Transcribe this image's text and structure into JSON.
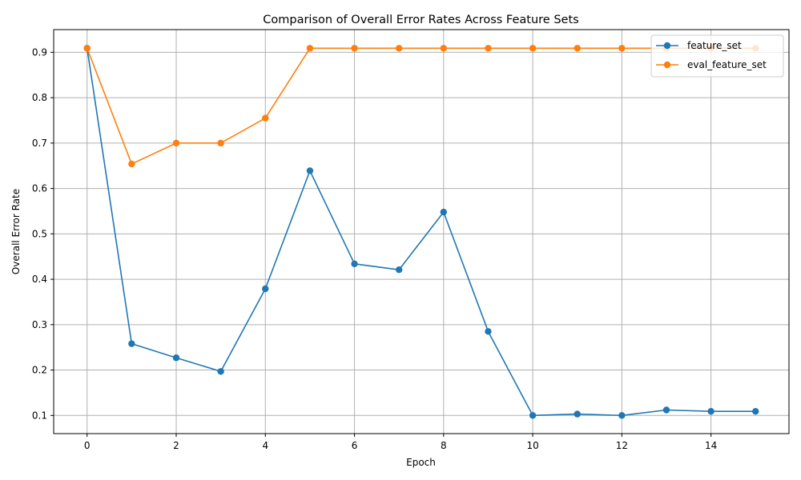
{
  "chart_data": {
    "type": "line",
    "title": "Comparison of Overall Error Rates Across Feature Sets",
    "xlabel": "Epoch",
    "ylabel": "Overall Error Rate",
    "x": [
      0,
      1,
      2,
      3,
      4,
      5,
      6,
      7,
      8,
      9,
      10,
      11,
      12,
      13,
      14,
      15
    ],
    "xlim": [
      -0.75,
      15.75
    ],
    "ylim": [
      0.06,
      0.95
    ],
    "x_ticks": [
      0,
      2,
      4,
      6,
      8,
      10,
      12,
      14
    ],
    "y_ticks": [
      0.1,
      0.2,
      0.3,
      0.4,
      0.5,
      0.6,
      0.7,
      0.8,
      0.9
    ],
    "x_tick_labels": [
      "0",
      "2",
      "4",
      "6",
      "8",
      "10",
      "12",
      "14"
    ],
    "y_tick_labels": [
      "0.1",
      "0.2",
      "0.3",
      "0.4",
      "0.5",
      "0.6",
      "0.7",
      "0.8",
      "0.9"
    ],
    "grid": true,
    "legend_position": "top-right",
    "series": [
      {
        "name": "feature_set",
        "color": "#1f77b4",
        "marker": "circle",
        "values": [
          0.909,
          0.258,
          0.227,
          0.197,
          0.379,
          0.639,
          0.434,
          0.421,
          0.548,
          0.285,
          0.1,
          0.103,
          0.1,
          0.112,
          0.109,
          0.109
        ]
      },
      {
        "name": "eval_feature_set",
        "color": "#ff7f0e",
        "marker": "circle",
        "values": [
          0.909,
          0.654,
          0.7,
          0.7,
          0.755,
          0.909,
          0.909,
          0.909,
          0.909,
          0.909,
          0.909,
          0.909,
          0.909,
          0.909,
          0.909,
          0.909
        ]
      }
    ]
  }
}
